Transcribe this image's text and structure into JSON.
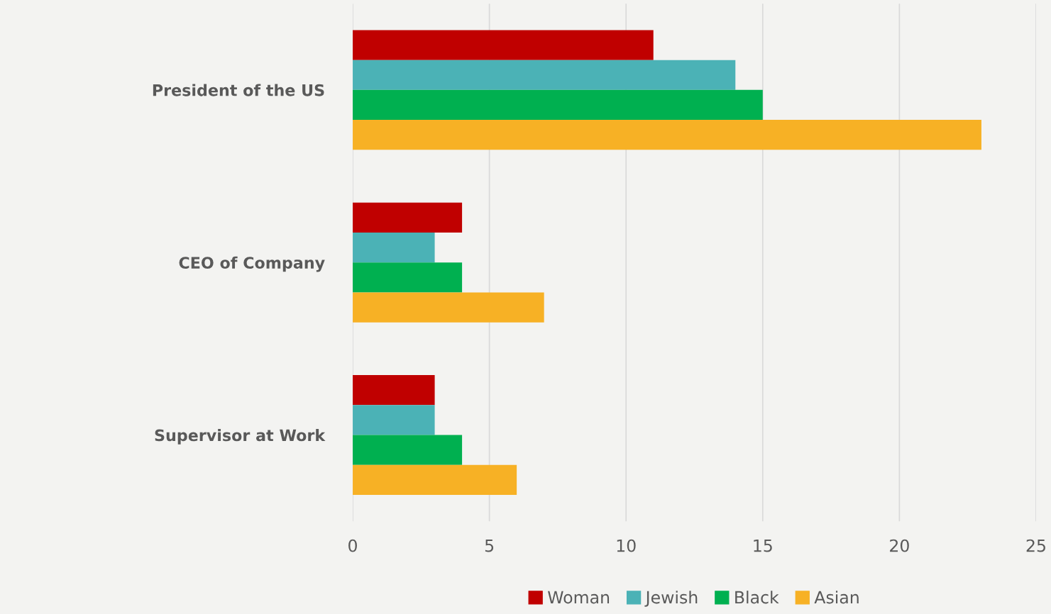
{
  "chart_data": {
    "type": "bar",
    "orientation": "horizontal",
    "categories": [
      "President of the US",
      "CEO of Company",
      "Supervisor at Work"
    ],
    "series": [
      {
        "name": "Woman",
        "color": "#c00000",
        "values": [
          11,
          4,
          3
        ]
      },
      {
        "name": "Jewish",
        "color": "#4bb2b6",
        "values": [
          14,
          3,
          3
        ]
      },
      {
        "name": "Black",
        "color": "#00b050",
        "values": [
          15,
          4,
          4
        ]
      },
      {
        "name": "Asian",
        "color": "#f7b125",
        "values": [
          23,
          7,
          6
        ]
      }
    ],
    "xlim": [
      0,
      25
    ],
    "xticks": [
      0,
      5,
      10,
      15,
      20,
      25
    ],
    "grid": "x",
    "legend": "bottom"
  }
}
